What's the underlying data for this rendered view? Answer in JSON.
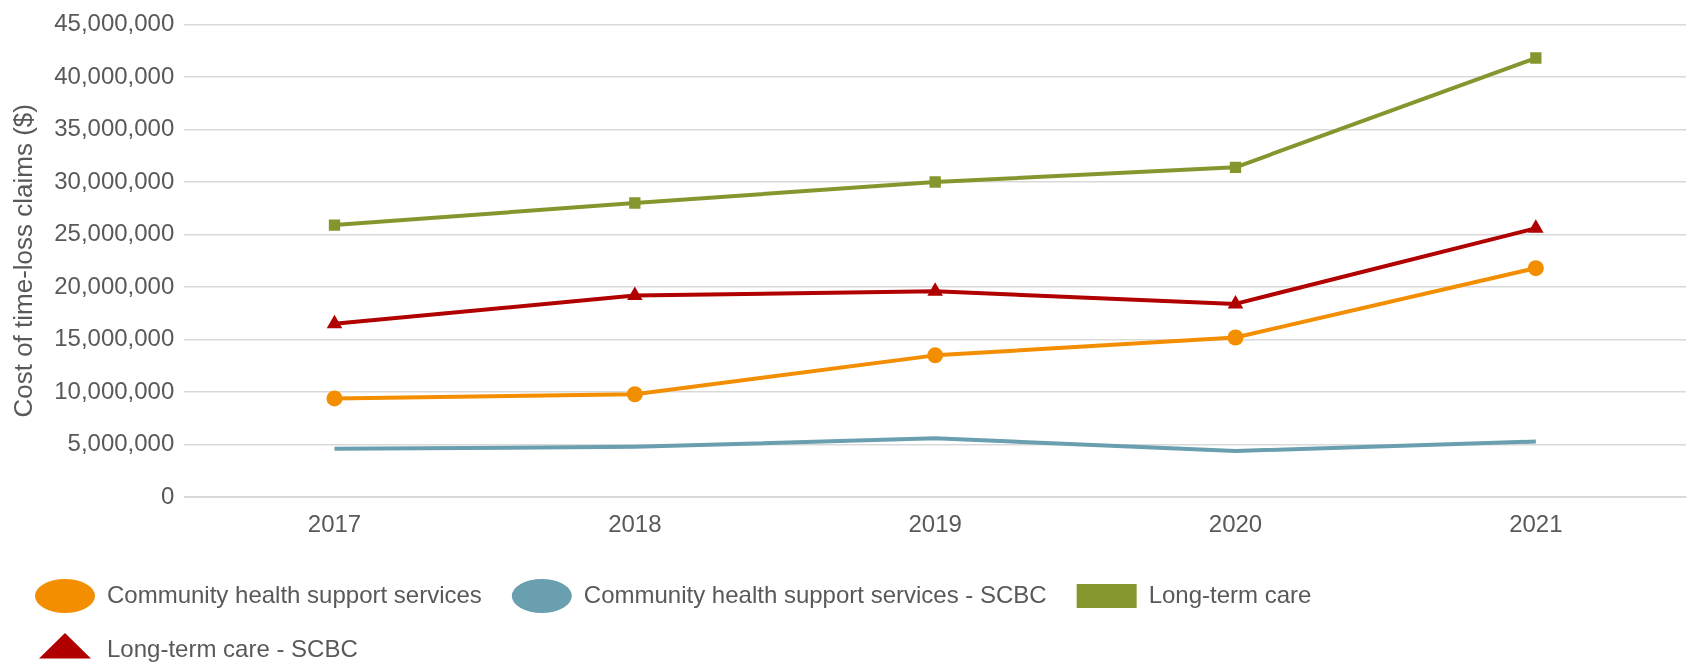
{
  "chart_data": {
    "type": "line",
    "ylabel": "Cost of time-loss claims ($)",
    "categories": [
      "2017",
      "2018",
      "2019",
      "2020",
      "2021"
    ],
    "series": [
      {
        "name": "Community health support services",
        "color": "#f28e00",
        "marker": "circle",
        "values": [
          9400000,
          9800000,
          13500000,
          15200000,
          21800000
        ]
      },
      {
        "name": "Community health support services - SCBC",
        "color": "#6a9fb0",
        "marker": "none",
        "values": [
          4600000,
          4800000,
          5600000,
          4400000,
          5300000
        ]
      },
      {
        "name": "Long-term care",
        "color": "#86962e",
        "marker": "square",
        "values": [
          25900000,
          28000000,
          30000000,
          31400000,
          41800000
        ]
      },
      {
        "name": "Long-term care - SCBC",
        "color": "#b00000",
        "marker": "triangle",
        "values": [
          16500000,
          19200000,
          19600000,
          18400000,
          25600000
        ]
      }
    ],
    "ylim": [
      0,
      45000000
    ],
    "yticks": [
      {
        "value": 0,
        "label": "0"
      },
      {
        "value": 5000000,
        "label": "5,000,000"
      },
      {
        "value": 10000000,
        "label": "10,000,000"
      },
      {
        "value": 15000000,
        "label": "15,000,000"
      },
      {
        "value": 20000000,
        "label": "20,000,000"
      },
      {
        "value": 25000000,
        "label": "25,000,000"
      },
      {
        "value": 30000000,
        "label": "30,000,000"
      },
      {
        "value": 35000000,
        "label": "35,000,000"
      },
      {
        "value": 40000000,
        "label": "40,000,000"
      },
      {
        "value": 45000000,
        "label": "45,000,000"
      }
    ],
    "grid": "y",
    "legend": "bottom",
    "line_style": "solid"
  }
}
